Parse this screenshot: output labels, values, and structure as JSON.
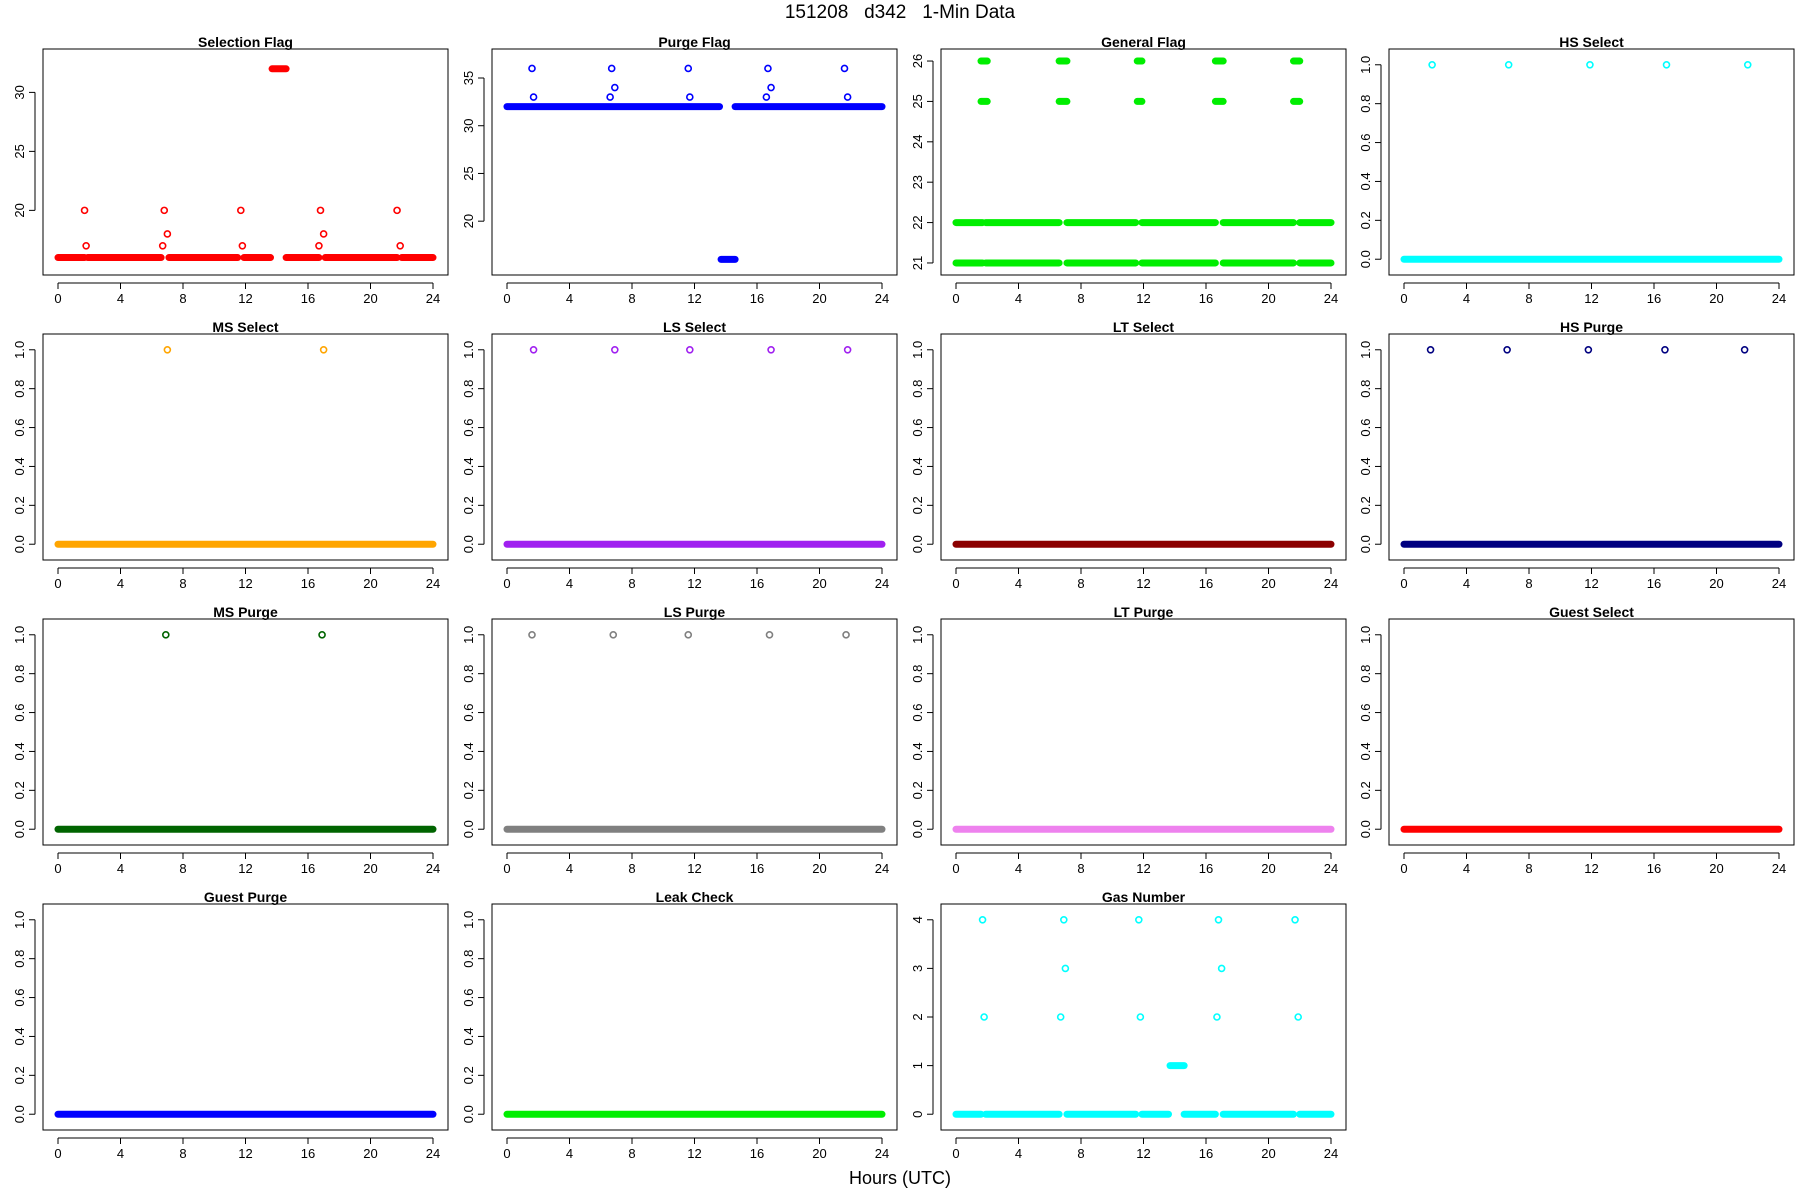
{
  "page": {
    "title": "151208   d342   1-Min Data",
    "xlabel": "Hours (UTC)"
  },
  "chart_data": [
    {
      "type": "scatter",
      "title": "Selection Flag",
      "color": "#ff0000",
      "xlim": [
        0,
        24
      ],
      "ylim": [
        15.2,
        33.0
      ],
      "xticks": [
        0,
        4,
        8,
        12,
        16,
        20,
        24
      ],
      "yticks": [
        20,
        25,
        30
      ],
      "baseline": [
        {
          "y": 16,
          "segments": [
            [
              0,
              1.7
            ],
            [
              1.9,
              6.6
            ],
            [
              7.1,
              11.5
            ],
            [
              11.9,
              13.6
            ],
            [
              14.6,
              16.7
            ],
            [
              17.1,
              21.7
            ],
            [
              22.0,
              24
            ]
          ]
        },
        {
          "y": 32,
          "segments": [
            [
              13.7,
              14.6
            ]
          ]
        }
      ],
      "points": [
        [
          1.7,
          20
        ],
        [
          1.8,
          17
        ],
        [
          6.7,
          17
        ],
        [
          6.8,
          20
        ],
        [
          7.0,
          18
        ],
        [
          11.7,
          20
        ],
        [
          11.8,
          17
        ],
        [
          16.7,
          17
        ],
        [
          16.8,
          20
        ],
        [
          17.0,
          18
        ],
        [
          21.7,
          20
        ],
        [
          21.9,
          17
        ]
      ]
    },
    {
      "type": "scatter",
      "title": "Purge Flag",
      "color": "#0000ff",
      "xlim": [
        0,
        24
      ],
      "ylim": [
        15.2,
        37.2
      ],
      "xticks": [
        0,
        4,
        8,
        12,
        16,
        20,
        24
      ],
      "yticks": [
        20,
        25,
        30,
        35
      ],
      "baseline": [
        {
          "y": 32,
          "segments": [
            [
              0,
              13.6
            ],
            [
              14.6,
              24
            ]
          ]
        },
        {
          "y": 16,
          "segments": [
            [
              13.7,
              14.6
            ]
          ]
        }
      ],
      "points": [
        [
          1.6,
          36
        ],
        [
          1.7,
          33
        ],
        [
          6.6,
          33
        ],
        [
          6.7,
          36
        ],
        [
          6.9,
          34
        ],
        [
          11.6,
          36
        ],
        [
          11.7,
          33
        ],
        [
          16.6,
          33
        ],
        [
          16.7,
          36
        ],
        [
          16.9,
          34
        ],
        [
          21.6,
          36
        ],
        [
          21.8,
          33
        ]
      ]
    },
    {
      "type": "scatter",
      "title": "General Flag",
      "color": "#00ee00",
      "xlim": [
        0,
        24
      ],
      "ylim": [
        20.9,
        26.1
      ],
      "xticks": [
        0,
        4,
        8,
        12,
        16,
        20,
        24
      ],
      "yticks": [
        21,
        22,
        23,
        24,
        25,
        26
      ],
      "baseline": [
        {
          "y": 21,
          "segments": [
            [
              0,
              1.7
            ],
            [
              1.9,
              6.6
            ],
            [
              7.1,
              11.5
            ],
            [
              11.9,
              16.6
            ],
            [
              17.1,
              21.6
            ],
            [
              22.0,
              24
            ]
          ]
        },
        {
          "y": 22,
          "segments": [
            [
              0,
              1.7
            ],
            [
              1.9,
              6.6
            ],
            [
              7.1,
              11.5
            ],
            [
              11.9,
              16.6
            ],
            [
              17.1,
              21.6
            ],
            [
              22.0,
              24
            ]
          ]
        },
        {
          "y": 25,
          "segments": [
            [
              1.6,
              2.0
            ],
            [
              6.6,
              7.1
            ],
            [
              11.6,
              11.9
            ],
            [
              16.6,
              17.1
            ],
            [
              21.6,
              22.0
            ]
          ]
        },
        {
          "y": 26,
          "segments": [
            [
              1.6,
              2.0
            ],
            [
              6.6,
              7.1
            ],
            [
              11.6,
              11.9
            ],
            [
              16.6,
              17.1
            ],
            [
              21.6,
              22.0
            ]
          ]
        }
      ],
      "points": []
    },
    {
      "type": "scatter",
      "title": "HS Select",
      "color": "#00ffff",
      "xlim": [
        0,
        24
      ],
      "ylim": [
        -0.04,
        1.04
      ],
      "xticks": [
        0,
        4,
        8,
        12,
        16,
        20,
        24
      ],
      "yticks": [
        "0.0",
        "0.2",
        "0.4",
        "0.6",
        "0.8",
        "1.0"
      ],
      "baseline": [
        {
          "y": 0,
          "segments": [
            [
              0,
              24
            ]
          ]
        }
      ],
      "points": [
        [
          1.8,
          1
        ],
        [
          6.7,
          1
        ],
        [
          11.9,
          1
        ],
        [
          16.8,
          1
        ],
        [
          22.0,
          1
        ]
      ]
    },
    {
      "type": "scatter",
      "title": "MS Select",
      "color": "#ffa500",
      "xlim": [
        0,
        24
      ],
      "ylim": [
        -0.04,
        1.04
      ],
      "xticks": [
        0,
        4,
        8,
        12,
        16,
        20,
        24
      ],
      "yticks": [
        "0.0",
        "0.2",
        "0.4",
        "0.6",
        "0.8",
        "1.0"
      ],
      "baseline": [
        {
          "y": 0,
          "segments": [
            [
              0,
              24
            ]
          ]
        }
      ],
      "points": [
        [
          7.0,
          1
        ],
        [
          17.0,
          1
        ]
      ]
    },
    {
      "type": "scatter",
      "title": "LS Select",
      "color": "#a020f0",
      "xlim": [
        0,
        24
      ],
      "ylim": [
        -0.04,
        1.04
      ],
      "xticks": [
        0,
        4,
        8,
        12,
        16,
        20,
        24
      ],
      "yticks": [
        "0.0",
        "0.2",
        "0.4",
        "0.6",
        "0.8",
        "1.0"
      ],
      "baseline": [
        {
          "y": 0,
          "segments": [
            [
              0,
              24
            ]
          ]
        }
      ],
      "points": [
        [
          1.7,
          1
        ],
        [
          6.9,
          1
        ],
        [
          11.7,
          1
        ],
        [
          16.9,
          1
        ],
        [
          21.8,
          1
        ]
      ]
    },
    {
      "type": "scatter",
      "title": "LT Select",
      "color": "#8b0000",
      "xlim": [
        0,
        24
      ],
      "ylim": [
        -0.04,
        1.04
      ],
      "xticks": [
        0,
        4,
        8,
        12,
        16,
        20,
        24
      ],
      "yticks": [
        "0.0",
        "0.2",
        "0.4",
        "0.6",
        "0.8",
        "1.0"
      ],
      "baseline": [
        {
          "y": 0,
          "segments": [
            [
              0,
              24
            ]
          ]
        }
      ],
      "points": []
    },
    {
      "type": "scatter",
      "title": "HS Purge",
      "color": "#000080",
      "xlim": [
        0,
        24
      ],
      "ylim": [
        -0.04,
        1.04
      ],
      "xticks": [
        0,
        4,
        8,
        12,
        16,
        20,
        24
      ],
      "yticks": [
        "0.0",
        "0.2",
        "0.4",
        "0.6",
        "0.8",
        "1.0"
      ],
      "baseline": [
        {
          "y": 0,
          "segments": [
            [
              0,
              24
            ]
          ]
        }
      ],
      "points": [
        [
          1.7,
          1
        ],
        [
          6.6,
          1
        ],
        [
          11.8,
          1
        ],
        [
          16.7,
          1
        ],
        [
          21.8,
          1
        ]
      ]
    },
    {
      "type": "scatter",
      "title": "MS Purge",
      "color": "#006400",
      "xlim": [
        0,
        24
      ],
      "ylim": [
        -0.04,
        1.04
      ],
      "xticks": [
        0,
        4,
        8,
        12,
        16,
        20,
        24
      ],
      "yticks": [
        "0.0",
        "0.2",
        "0.4",
        "0.6",
        "0.8",
        "1.0"
      ],
      "baseline": [
        {
          "y": 0,
          "segments": [
            [
              0,
              24
            ]
          ]
        }
      ],
      "points": [
        [
          6.9,
          1
        ],
        [
          16.9,
          1
        ]
      ]
    },
    {
      "type": "scatter",
      "title": "LS Purge",
      "color": "#808080",
      "xlim": [
        0,
        24
      ],
      "ylim": [
        -0.04,
        1.04
      ],
      "xticks": [
        0,
        4,
        8,
        12,
        16,
        20,
        24
      ],
      "yticks": [
        "0.0",
        "0.2",
        "0.4",
        "0.6",
        "0.8",
        "1.0"
      ],
      "baseline": [
        {
          "y": 0,
          "segments": [
            [
              0,
              24
            ]
          ]
        }
      ],
      "points": [
        [
          1.6,
          1
        ],
        [
          6.8,
          1
        ],
        [
          11.6,
          1
        ],
        [
          16.8,
          1
        ],
        [
          21.7,
          1
        ]
      ]
    },
    {
      "type": "scatter",
      "title": "LT Purge",
      "color": "#ee82ee",
      "xlim": [
        0,
        24
      ],
      "ylim": [
        -0.04,
        1.04
      ],
      "xticks": [
        0,
        4,
        8,
        12,
        16,
        20,
        24
      ],
      "yticks": [
        "0.0",
        "0.2",
        "0.4",
        "0.6",
        "0.8",
        "1.0"
      ],
      "baseline": [
        {
          "y": 0,
          "segments": [
            [
              0,
              24
            ]
          ]
        }
      ],
      "points": []
    },
    {
      "type": "scatter",
      "title": "Guest Select",
      "color": "#ff0000",
      "xlim": [
        0,
        24
      ],
      "ylim": [
        -0.04,
        1.04
      ],
      "xticks": [
        0,
        4,
        8,
        12,
        16,
        20,
        24
      ],
      "yticks": [
        "0.0",
        "0.2",
        "0.4",
        "0.6",
        "0.8",
        "1.0"
      ],
      "baseline": [
        {
          "y": 0,
          "segments": [
            [
              0,
              24
            ]
          ]
        }
      ],
      "points": []
    },
    {
      "type": "scatter",
      "title": "Guest Purge",
      "color": "#0000ff",
      "xlim": [
        0,
        24
      ],
      "ylim": [
        -0.04,
        1.04
      ],
      "xticks": [
        0,
        4,
        8,
        12,
        16,
        20,
        24
      ],
      "yticks": [
        "0.0",
        "0.2",
        "0.4",
        "0.6",
        "0.8",
        "1.0"
      ],
      "baseline": [
        {
          "y": 0,
          "segments": [
            [
              0,
              24
            ]
          ]
        }
      ],
      "points": []
    },
    {
      "type": "scatter",
      "title": "Leak Check",
      "color": "#00ee00",
      "xlim": [
        0,
        24
      ],
      "ylim": [
        -0.04,
        1.04
      ],
      "xticks": [
        0,
        4,
        8,
        12,
        16,
        20,
        24
      ],
      "yticks": [
        "0.0",
        "0.2",
        "0.4",
        "0.6",
        "0.8",
        "1.0"
      ],
      "baseline": [
        {
          "y": 0,
          "segments": [
            [
              0,
              24
            ]
          ]
        }
      ],
      "points": []
    },
    {
      "type": "scatter",
      "title": "Gas Number",
      "color": "#00ffff",
      "xlim": [
        0,
        24
      ],
      "ylim": [
        -0.16,
        4.16
      ],
      "xticks": [
        0,
        4,
        8,
        12,
        16,
        20,
        24
      ],
      "yticks": [
        0,
        1,
        2,
        3,
        4
      ],
      "baseline": [
        {
          "y": 0,
          "segments": [
            [
              0,
              1.6
            ],
            [
              1.9,
              6.6
            ],
            [
              7.1,
              11.5
            ],
            [
              11.9,
              13.6
            ],
            [
              14.6,
              16.6
            ],
            [
              17.1,
              21.6
            ],
            [
              22.0,
              24
            ]
          ]
        },
        {
          "y": 1,
          "segments": [
            [
              13.7,
              14.6
            ]
          ]
        }
      ],
      "points": [
        [
          1.7,
          4
        ],
        [
          1.8,
          2
        ],
        [
          6.7,
          2
        ],
        [
          6.9,
          4
        ],
        [
          7.0,
          3
        ],
        [
          11.7,
          4
        ],
        [
          11.8,
          2
        ],
        [
          16.7,
          2
        ],
        [
          16.8,
          4
        ],
        [
          17.0,
          3
        ],
        [
          21.7,
          4
        ],
        [
          21.9,
          2
        ]
      ]
    }
  ]
}
